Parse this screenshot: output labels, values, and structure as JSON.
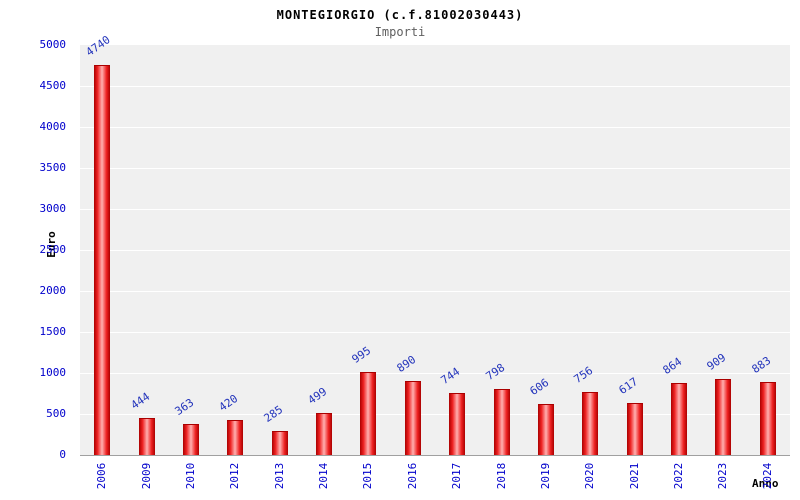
{
  "header": {
    "title": "MONTEGIORGIO (c.f.81002030443)",
    "subtitle": "Importi"
  },
  "chart_data": {
    "type": "bar",
    "title": "MONTEGIORGIO (c.f.81002030443)",
    "subtitle": "Importi",
    "xlabel": "Anno",
    "ylabel": "Euro",
    "categories": [
      "2006",
      "2009",
      "2010",
      "2012",
      "2013",
      "2014",
      "2015",
      "2016",
      "2017",
      "2018",
      "2019",
      "2020",
      "2021",
      "2022",
      "2023",
      "2024"
    ],
    "values": [
      4740,
      444,
      363,
      420,
      285,
      499,
      995,
      890,
      744,
      798,
      606,
      756,
      617,
      864,
      909,
      883
    ],
    "ylim": [
      0,
      5000
    ],
    "ytick_step": 500,
    "yticks": [
      0,
      500,
      1000,
      1500,
      2000,
      2500,
      3000,
      3500,
      4000,
      4500,
      5000
    ],
    "grid": "horizontal-white-on-gray",
    "legend": "none",
    "colors": {
      "bar_color": "#ee2222",
      "bar_edge": "#aa0000",
      "bar_highlight": "#ffb0b0",
      "value_label_color": "#2233bb",
      "axis_label_color": "#0000cc",
      "plot_background": "#f0f0f0",
      "gridline_color": "#ffffff"
    }
  }
}
